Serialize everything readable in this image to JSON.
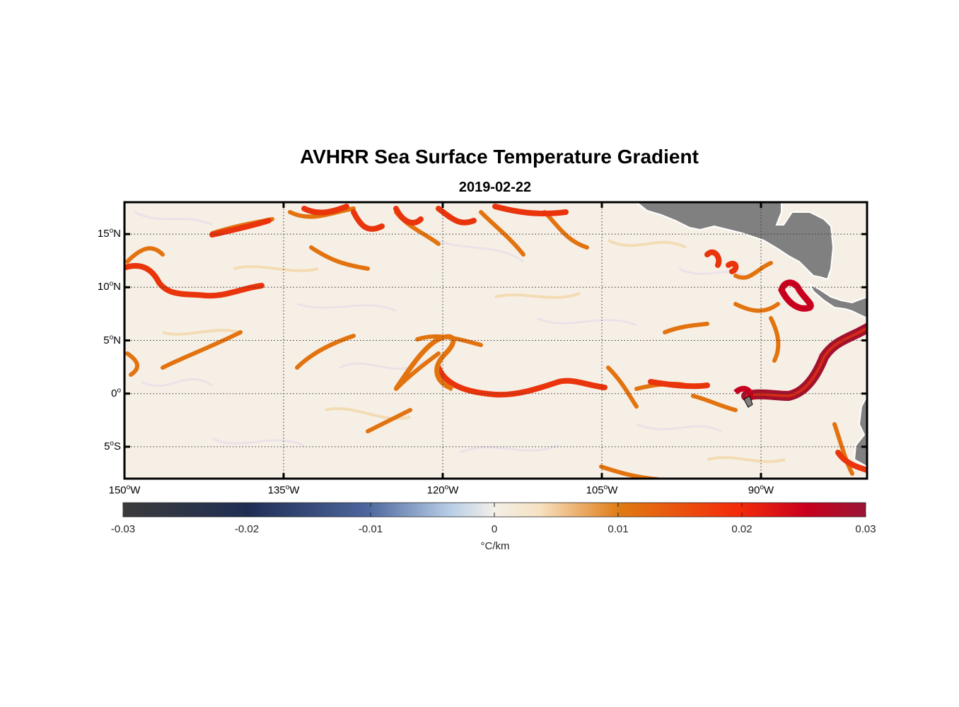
{
  "title": "AVHRR Sea Surface Temperature Gradient",
  "subtitle": "2019-02-22",
  "map": {
    "lon_range": [
      -150,
      -80
    ],
    "lat_range": [
      -8,
      18
    ],
    "lat_ticks": [
      {
        "value": 15,
        "num": "15",
        "hem": "N"
      },
      {
        "value": 10,
        "num": "10",
        "hem": "N"
      },
      {
        "value": 5,
        "num": "5",
        "hem": "N"
      },
      {
        "value": 0,
        "num": "0",
        "hem": ""
      },
      {
        "value": -5,
        "num": "5",
        "hem": "S"
      }
    ],
    "lon_ticks": [
      {
        "value": -150,
        "num": "150",
        "hem": "W"
      },
      {
        "value": -135,
        "num": "135",
        "hem": "W"
      },
      {
        "value": -120,
        "num": "120",
        "hem": "W"
      },
      {
        "value": -105,
        "num": "105",
        "hem": "W"
      },
      {
        "value": -90,
        "num": "90",
        "hem": "W"
      }
    ],
    "degree_symbol": "o",
    "gridlines": true,
    "land_color": "#808080",
    "background_color": "#f6efe6"
  },
  "colorbar": {
    "ticks": [
      "-0.03",
      "-0.02",
      "-0.01",
      "0",
      "0.01",
      "0.02",
      "0.03"
    ],
    "unit": "°C/km",
    "colors": [
      "#3b3b3b",
      "#1f2e55",
      "#4e679e",
      "#b7cde6",
      "#f4efe8",
      "#f6e2c2",
      "#e07a12",
      "#f42a0a",
      "#c8001e",
      "#9a1535"
    ]
  }
}
